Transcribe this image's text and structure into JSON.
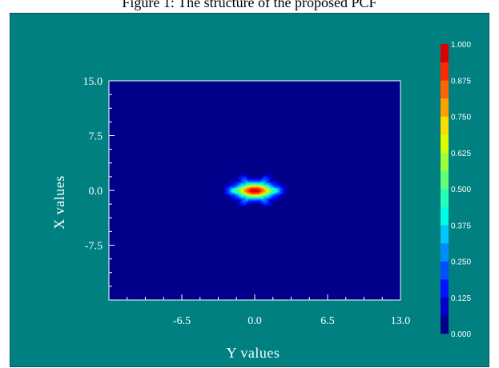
{
  "caption": "Figure 1: The structure of the proposed PCF",
  "colors": {
    "background": "#008080",
    "plot_background": "#00008b",
    "axis_text": "#ffffff"
  },
  "chart_data": {
    "type": "heatmap",
    "xlabel": "Y values",
    "ylabel": "X values",
    "x_ticks": [
      "-6.5",
      "0.0",
      "6.5",
      "13.0"
    ],
    "x_tick_values": [
      -6.5,
      0.0,
      6.5,
      13.0
    ],
    "y_ticks": [
      "15.0",
      "7.5",
      "0.0",
      "-7.5"
    ],
    "y_tick_values": [
      15.0,
      7.5,
      0.0,
      -7.5
    ],
    "xlim": [
      -13.0,
      13.0
    ],
    "ylim": [
      -15.0,
      15.0
    ],
    "colorbar": {
      "ticks": [
        "1.000",
        "0.875",
        "0.750",
        "0.625",
        "0.500",
        "0.375",
        "0.250",
        "0.125",
        "0.000"
      ],
      "range": [
        0.0,
        1.0
      ],
      "colors": [
        "#00008b",
        "#0000c8",
        "#0014ff",
        "#0050ff",
        "#008cff",
        "#00c8ff",
        "#00ffe6",
        "#28ffb4",
        "#64ff78",
        "#a0ff3c",
        "#dcff00",
        "#ffdc00",
        "#ffa000",
        "#ff6400",
        "#ff2800",
        "#dc0000"
      ]
    },
    "field": {
      "center": [
        0.0,
        0.0
      ],
      "sigma_x": 1.2,
      "sigma_y": 0.75,
      "peak": 1.0,
      "symmetry": "hexagonal",
      "lobe_strength": 0.15
    }
  }
}
